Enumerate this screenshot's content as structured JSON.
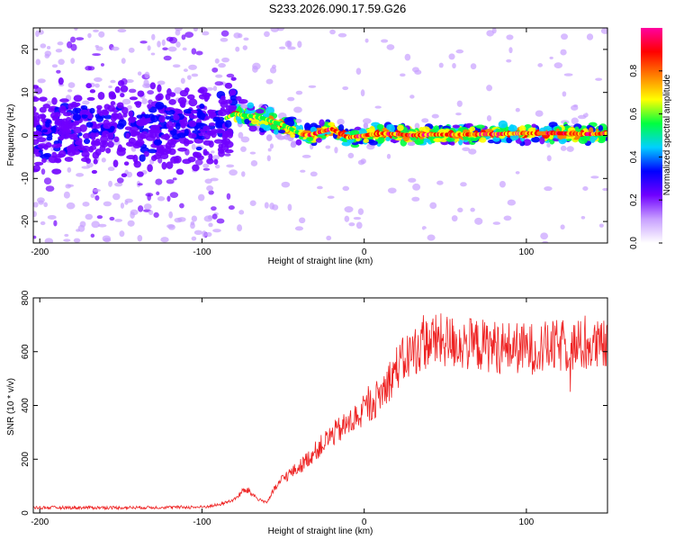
{
  "title": "S233.2026.090.17.59.G26",
  "chart_data": [
    {
      "type": "heatmap",
      "xlabel": "Height of straight line (km)",
      "ylabel": "Frequency (Hz)",
      "xlim": [
        -204,
        150
      ],
      "ylim": [
        -25,
        25
      ],
      "x_ticks": [
        -200,
        -100,
        0,
        100
      ],
      "x_tick_labels": [
        "-200",
        "-100",
        "0",
        "100"
      ],
      "y_ticks": [
        -20,
        -10,
        0,
        10,
        20
      ],
      "y_tick_labels": [
        "-20",
        "-10",
        "0",
        "10",
        "20"
      ],
      "ridge": {
        "x": [
          -204,
          -180,
          -160,
          -140,
          -120,
          -100,
          -90,
          -80,
          -70,
          -62,
          -55,
          -50,
          -45,
          -40,
          -35,
          -30,
          -25,
          -20,
          -15,
          -10,
          0,
          10,
          20,
          30,
          40,
          60,
          80,
          100,
          120,
          140,
          150
        ],
        "freq": [
          1,
          1,
          1.5,
          1,
          2,
          2,
          3,
          5,
          4.5,
          4,
          3,
          2.5,
          1.5,
          0.5,
          0,
          0.5,
          1,
          1.5,
          0.5,
          -0.5,
          0,
          0.5,
          0.3,
          0,
          0.2,
          0.2,
          0.3,
          0.5,
          0.5,
          0.3,
          0.5
        ]
      },
      "colorbar": {
        "label": "Normalized spectral amplitude",
        "range": [
          0,
          1
        ],
        "ticks": [
          0.0,
          0.2,
          0.4,
          0.6,
          0.8
        ],
        "tick_labels": [
          "0.0",
          "0.2",
          "0.4",
          "0.6",
          "0.8"
        ],
        "colors": [
          "#ffffff",
          "#c8a0ff",
          "#7000ff",
          "#0000ff",
          "#00d0ff",
          "#00ff40",
          "#ffff00",
          "#ff8000",
          "#ff0000",
          "#ff00a0"
        ]
      }
    },
    {
      "type": "line",
      "xlabel": "Height of straight line (km)",
      "ylabel": "SNR (10 * v/v)",
      "xlim": [
        -204,
        150
      ],
      "ylim": [
        0,
        800
      ],
      "x_ticks": [
        -200,
        -100,
        0,
        100
      ],
      "x_tick_labels": [
        "-200",
        "-100",
        "0",
        "100"
      ],
      "y_ticks": [
        0,
        200,
        400,
        600,
        800
      ],
      "y_tick_labels": [
        "0",
        "200",
        "400",
        "600",
        "800"
      ],
      "color": "#ee2222",
      "trend": {
        "x": [
          -204,
          -150,
          -100,
          -90,
          -80,
          -75,
          -72,
          -65,
          -60,
          -55,
          -50,
          -40,
          -30,
          -20,
          -10,
          0,
          10,
          20,
          30,
          40,
          50,
          60,
          80,
          100,
          120,
          150
        ],
        "snr": [
          20,
          20,
          22,
          30,
          50,
          80,
          85,
          50,
          40,
          90,
          130,
          170,
          230,
          290,
          330,
          380,
          440,
          540,
          600,
          640,
          640,
          630,
          620,
          610,
          620,
          620
        ]
      }
    }
  ]
}
